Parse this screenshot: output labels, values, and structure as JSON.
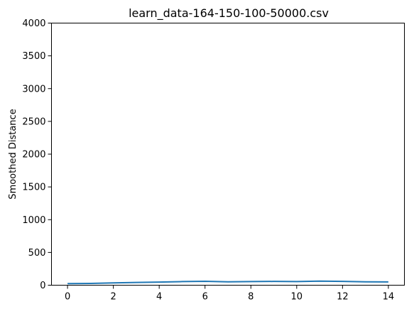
{
  "chart_data": {
    "type": "line",
    "title": "learn_data-164-150-100-50000.csv",
    "xlabel": "",
    "ylabel": "Smoothed Distance",
    "xlim": [
      -0.7,
      14.7
    ],
    "ylim": [
      0,
      4000
    ],
    "x_ticks": [
      0,
      2,
      4,
      6,
      8,
      10,
      12,
      14
    ],
    "y_ticks": [
      0,
      500,
      1000,
      1500,
      2000,
      2500,
      3000,
      3500,
      4000
    ],
    "grid": false,
    "series": [
      {
        "color": "#1f77b4",
        "x": [
          0,
          1,
          2,
          3,
          4,
          5,
          6,
          7,
          8,
          9,
          10,
          11,
          12,
          13,
          14
        ],
        "y": [
          25,
          27,
          35,
          42,
          48,
          55,
          60,
          52,
          55,
          58,
          56,
          62,
          58,
          52,
          50
        ]
      }
    ]
  }
}
